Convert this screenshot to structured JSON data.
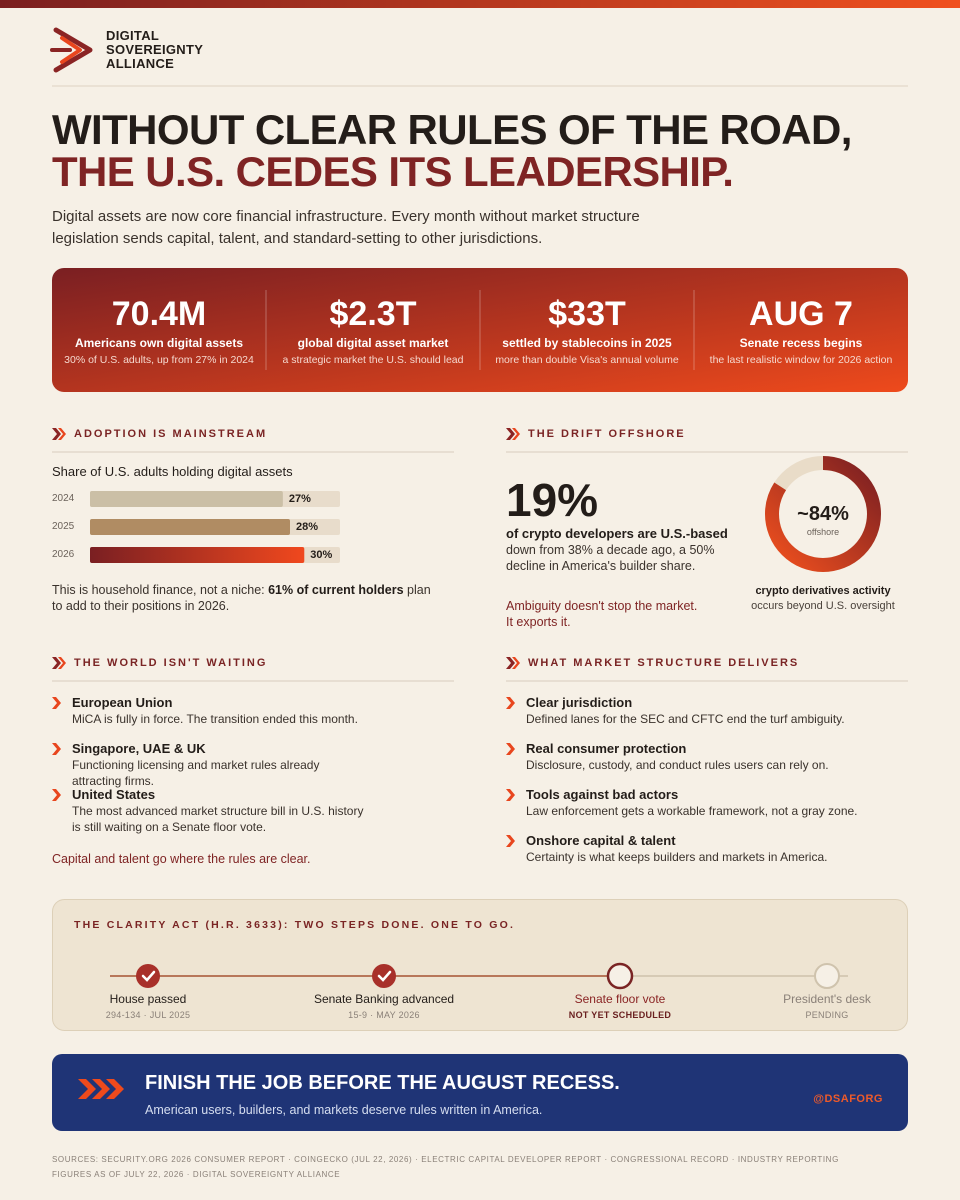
{
  "brand": {
    "name_lines": [
      "DIGITAL",
      "SOVEREIGNTY",
      "ALLIANCE"
    ]
  },
  "headline": {
    "line1": "WITHOUT CLEAR RULES OF THE ROAD,",
    "line2": "THE U.S. CEDES ITS LEADERSHIP."
  },
  "intro": "Digital assets are now core financial infrastructure. Every month without market structure legislation sends capital, talent, and standard-setting to other jurisdictions.",
  "stats": [
    {
      "value": "70.4M",
      "label": "Americans own digital assets",
      "note": "30% of U.S. adults, up from 27% in 2024"
    },
    {
      "value": "$2.3T",
      "label": "global digital asset market",
      "note": "a strategic market the U.S. should lead"
    },
    {
      "value": "$33T",
      "label": "settled by stablecoins in 2025",
      "note": "more than double Visa's annual volume"
    },
    {
      "value": "AUG 7",
      "label": "Senate recess begins",
      "note": "the last realistic window for 2026 action"
    }
  ],
  "adoption": {
    "heading": "ADOPTION IS MAINSTREAM",
    "chart_title": "Share of U.S. adults holding digital assets",
    "categories": [
      "2024",
      "2025",
      "2026"
    ],
    "values": [
      27,
      28,
      30
    ],
    "value_labels": [
      "27%",
      "28%",
      "30%"
    ],
    "xlim": [
      0,
      35
    ],
    "colors": [
      "#cbbfa6",
      "#b08c63",
      "#e8441e"
    ],
    "note_parts": [
      "This is household finance, not a niche: ",
      "61% of current holders",
      " plan to add to their positions in 2026."
    ]
  },
  "offshore": {
    "heading": "THE DRIFT OFFSHORE",
    "big": "19%",
    "big_label": "of crypto developers are U.S.-based",
    "detail": "down from 38% a decade ago, a 50% decline in America's builder share.",
    "callout_lines": [
      "Ambiguity doesn't stop the market.",
      "It exports it."
    ],
    "donut": {
      "value": 84,
      "value_label": "~84%",
      "unit": "offshore",
      "caption": "crypto derivatives activity",
      "subcaption": "occurs beyond U.S. oversight"
    }
  },
  "world": {
    "heading": "THE WORLD ISN'T WAITING",
    "items": [
      {
        "title": "European Union",
        "text": "MiCA is fully in force. The transition ended this month."
      },
      {
        "title": "Singapore, UAE & UK",
        "text": "Functioning licensing and market rules already attracting firms."
      },
      {
        "title": "United States",
        "text": "The most advanced market structure bill in U.S. history is still waiting on a Senate floor vote."
      }
    ],
    "footer": "Capital and talent go where the rules are clear."
  },
  "delivers": {
    "heading": "WHAT MARKET STRUCTURE DELIVERS",
    "items": [
      {
        "title": "Clear jurisdiction",
        "text": "Defined lanes for the SEC and CFTC end the turf ambiguity."
      },
      {
        "title": "Real consumer protection",
        "text": "Disclosure, custody, and conduct rules users can rely on."
      },
      {
        "title": "Tools against bad actors",
        "text": "Law enforcement gets a workable framework, not a gray zone."
      },
      {
        "title": "Onshore capital & talent",
        "text": "Certainty is what keeps builders and markets in America."
      }
    ]
  },
  "timeline": {
    "title": "THE CLARITY ACT (H.R. 3633): TWO STEPS DONE. ONE TO GO.",
    "steps": [
      {
        "label": "House passed",
        "detail": "294-134 · JUL 2025",
        "status": "complete"
      },
      {
        "label": "Senate Banking advanced",
        "detail": "15-9 · MAY 2026",
        "status": "complete"
      },
      {
        "label": "Senate floor vote",
        "detail": "NOT YET SCHEDULED",
        "status": "current"
      },
      {
        "label": "President's desk",
        "detail": "PENDING",
        "status": "upcoming"
      }
    ]
  },
  "cta": {
    "title": "FINISH THE JOB BEFORE THE AUGUST RECESS.",
    "text": "American users, builders, and markets deserve rules written in America.",
    "handle": "@DSAFORG"
  },
  "sources": [
    "SOURCES: SECURITY.ORG 2026 CONSUMER REPORT · COINGECKO (JUL 22, 2026) · ELECTRIC CAPITAL DEVELOPER REPORT · CONGRESSIONAL RECORD · INDUSTRY REPORTING",
    "FIGURES AS OF JULY 22, 2026 · DIGITAL SOVEREIGNTY ALLIANCE"
  ]
}
